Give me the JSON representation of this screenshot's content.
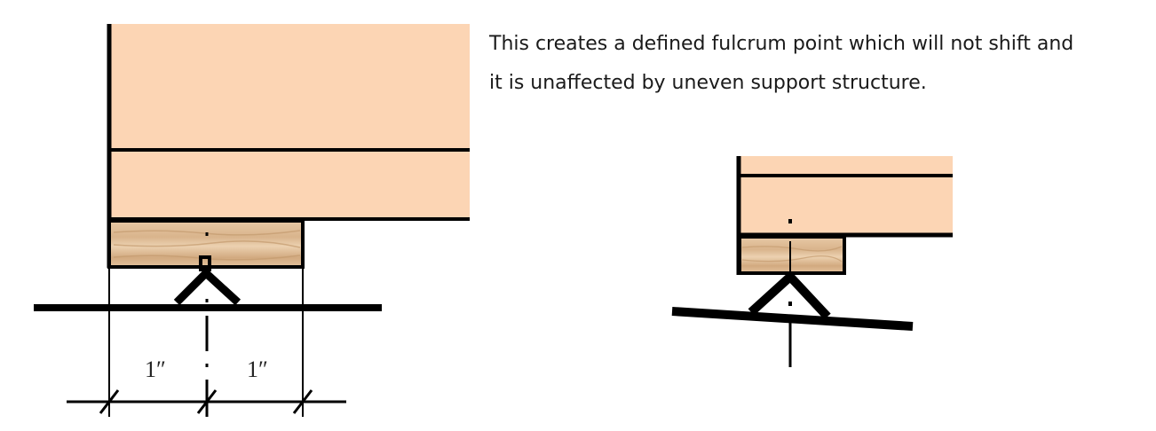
{
  "caption": {
    "line1": "This creates a defined fulcrum point which will not shift and",
    "line2": "it is unaffected by uneven support structure."
  },
  "dimensions": {
    "left_label": "1″",
    "right_label": "1″"
  },
  "colors": {
    "joist_fill": "#fcd5b4",
    "wood_light": "#e8c9a6",
    "wood_dark": "#cfa57a",
    "line": "#000000",
    "background": "#ffffff"
  }
}
